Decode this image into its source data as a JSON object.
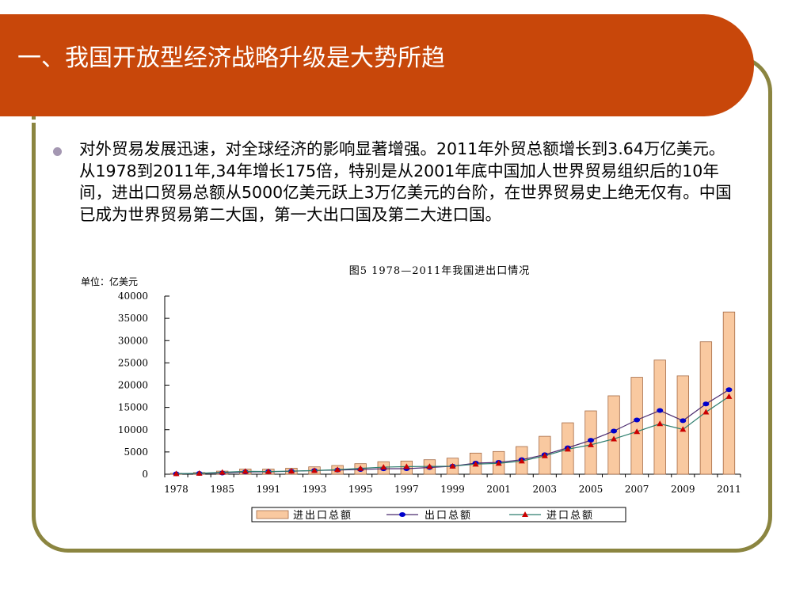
{
  "slide": {
    "title": "一、我国开放型经济战略升级是大势所趋",
    "bullet_text": "对外贸易发展迅速，对全球经济的影响显著增强。2011年外贸总额增长到3.64万亿美元。从1978到2011年,34年增长175倍，特别是从2001年底中国加人世界贸易组织后的10年间，进出口贸易总额从5000亿美元跃上3万亿美元的台阶，在世界贸易史上绝无仅有。中国已成为世界贸易第二大国，第一大出口国及第二大进口国。"
  },
  "colors": {
    "header": "#c8470a",
    "frame": "#8b8540",
    "bar": "#f9c9a0",
    "bar_border": "#a56a44",
    "export": "#0000cc",
    "import": "#cc0000"
  },
  "chart_data": {
    "type": "bar",
    "title": "图5  1978—2011年我国进出口情况",
    "unit_label": "单位：亿美元",
    "xlabel": "",
    "ylabel": "",
    "ylim": [
      0,
      40000
    ],
    "y_ticks": [
      0,
      5000,
      10000,
      15000,
      20000,
      25000,
      30000,
      35000,
      40000
    ],
    "x_tick_labels": [
      "1978",
      "1985",
      "1991",
      "1993",
      "1995",
      "1997",
      "1999",
      "2001",
      "2003",
      "2005",
      "2007",
      "2009",
      "2011"
    ],
    "x_tick_positions": [
      0,
      2,
      4,
      6,
      8,
      10,
      12,
      14,
      16,
      18,
      20,
      22,
      24
    ],
    "legend_position": "bottom",
    "grid": false,
    "series": [
      {
        "name": "进出口总额",
        "type": "bar",
        "values": [
          206,
          381,
          696,
          1155,
          1154,
          1357,
          1655,
          1957,
          2366,
          2808,
          2961,
          3251,
          3607,
          4743,
          5098,
          6208,
          8510,
          11546,
          14219,
          17604,
          21766,
          25633,
          22075,
          29740,
          36421
        ]
      },
      {
        "name": "出口总额",
        "type": "line",
        "marker": "circle",
        "values": [
          98,
          181,
          274,
          510,
          560,
          660,
          830,
          930,
          1060,
          1220,
          1250,
          1510,
          1800,
          2490,
          2660,
          3256,
          4382,
          5933,
          7620,
          9690,
          12178,
          14307,
          12016,
          15778,
          18986
        ]
      },
      {
        "name": "进口总额",
        "type": "line",
        "marker": "triangle",
        "values": [
          108,
          200,
          423,
          644,
          594,
          697,
          825,
          1027,
          1306,
          1588,
          1711,
          1741,
          1807,
          2253,
          2438,
          2952,
          4128,
          5612,
          6600,
          7915,
          9558,
          11326,
          10059,
          13962,
          17435
        ]
      }
    ]
  }
}
